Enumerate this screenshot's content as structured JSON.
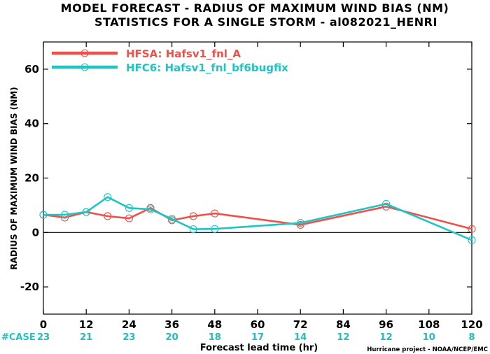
{
  "chart_data": {
    "type": "line",
    "title": "MODEL FORECAST - RADIUS OF MAXIMUM WIND BIAS (NM)",
    "subtitle": "STATISTICS FOR A SINGLE STORM - al082021_HENRI",
    "xlabel": "Forecast lead time (hr)",
    "ylabel": "RADIUS OF MAXIMUM WIND BIAS (NM)",
    "xlim": [
      0,
      120
    ],
    "ylim": [
      -30,
      70
    ],
    "xticks": [
      0,
      12,
      24,
      36,
      48,
      60,
      72,
      84,
      96,
      108,
      120
    ],
    "yticks": [
      -20,
      0,
      20,
      40,
      60
    ],
    "ytick_labels": [
      "-20",
      "0",
      "20",
      "40",
      "60"
    ],
    "zero_line": true,
    "legend_position": "top-left",
    "series": [
      {
        "name": "HFSA: Hafsv1_fnl_A",
        "color": "#f0504a",
        "points": [
          [
            0,
            6.5
          ],
          [
            6,
            5.5
          ],
          [
            12,
            7.5
          ],
          [
            18,
            6
          ],
          [
            24,
            5.2
          ],
          [
            30,
            9
          ],
          [
            36,
            4.5
          ],
          [
            42,
            6
          ],
          [
            48,
            7
          ],
          [
            72,
            2.8
          ],
          [
            96,
            9.5
          ],
          [
            120,
            1.3
          ]
        ]
      },
      {
        "name": "HFC6: Hafsv1_fnl_bf6bugfix",
        "color": "#1ec5c3",
        "points": [
          [
            0,
            6.5
          ],
          [
            6,
            6.5
          ],
          [
            12,
            7.5
          ],
          [
            18,
            13
          ],
          [
            24,
            9
          ],
          [
            30,
            8.5
          ],
          [
            36,
            5
          ],
          [
            42,
            1.2
          ],
          [
            48,
            1.3
          ],
          [
            72,
            3.5
          ],
          [
            96,
            10.5
          ],
          [
            120,
            -2.8
          ]
        ]
      }
    ],
    "cases": {
      "label": "#CASE",
      "rows": [
        {
          "series": 0,
          "values": [
            "23",
            "21",
            "23",
            "20",
            "18",
            "17",
            "14",
            "12",
            "12",
            "10",
            "8"
          ]
        },
        {
          "series": 1,
          "values": [
            "23",
            "21",
            "23",
            "20",
            "18",
            "17",
            "14",
            "12",
            "12",
            "10",
            "8"
          ]
        }
      ]
    },
    "credit": "Hurricane project - NOAA/NCEP/EMC"
  }
}
